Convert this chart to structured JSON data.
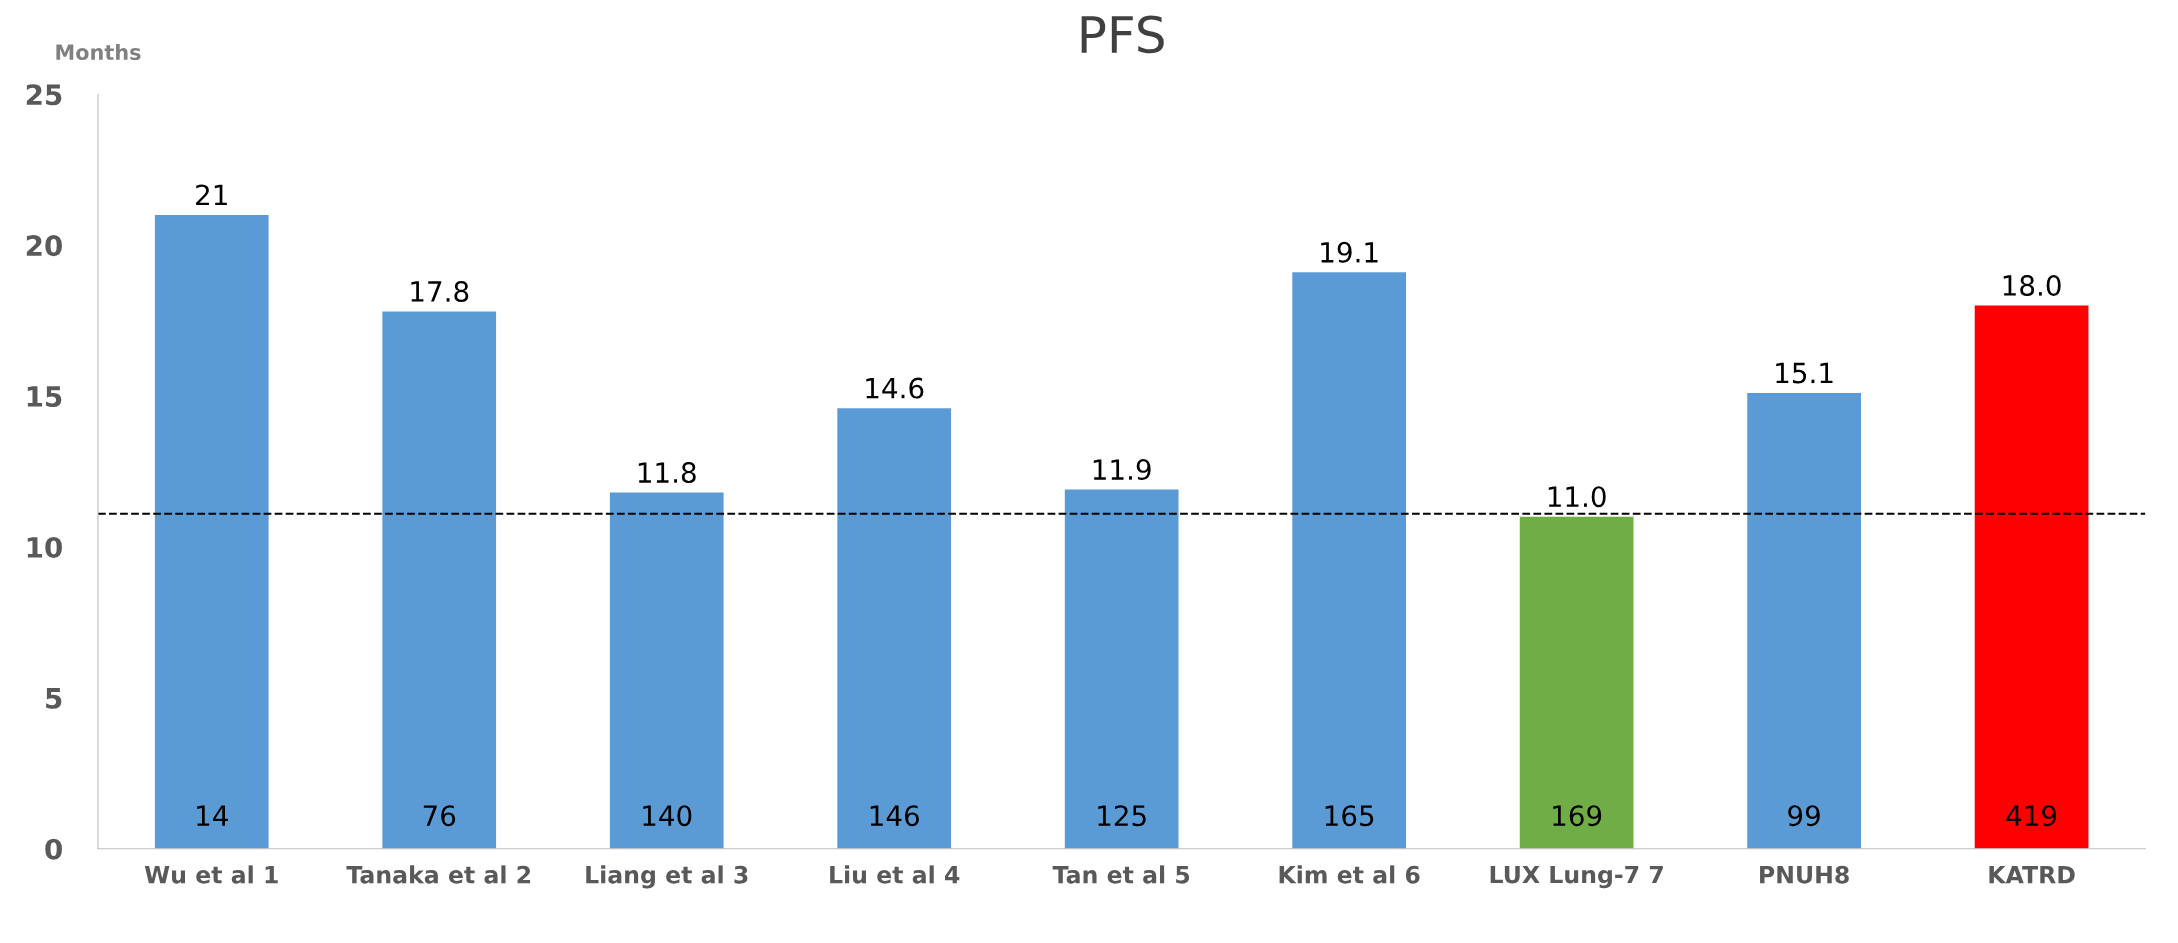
{
  "chart_data": {
    "type": "bar",
    "title": "PFS",
    "ylabel": "Months",
    "categories": [
      "Wu et al 1",
      "Tanaka et al 2",
      "Liang et al 3",
      "Liu et al 4",
      "Tan et al 5",
      "Kim et al 6",
      "LUX Lung-7 7",
      "PNUH8",
      "KATRD"
    ],
    "values": [
      21,
      17.8,
      11.8,
      14.6,
      11.9,
      19.1,
      11.0,
      15.1,
      18.0
    ],
    "value_labels": [
      "21",
      "17.8",
      "11.8",
      "14.6",
      "11.9",
      "19.1",
      "11.0",
      "15.1",
      "18.0"
    ],
    "colors": [
      "#5b9bd5",
      "#5b9bd5",
      "#5b9bd5",
      "#5b9bd5",
      "#5b9bd5",
      "#5b9bd5",
      "#70ad47",
      "#5b9bd5",
      "#ff0000"
    ],
    "ylim": [
      0,
      25
    ],
    "yticks": [
      0,
      5,
      10,
      15,
      20,
      25
    ],
    "grid": false,
    "ref_lines": [
      {
        "axis": "y",
        "value": 11.1,
        "color": "#000000",
        "line_style": "dashed"
      }
    ],
    "annotations": [
      "14",
      "76",
      "140",
      "146",
      "125",
      "165",
      "169",
      "99",
      "419"
    ]
  }
}
